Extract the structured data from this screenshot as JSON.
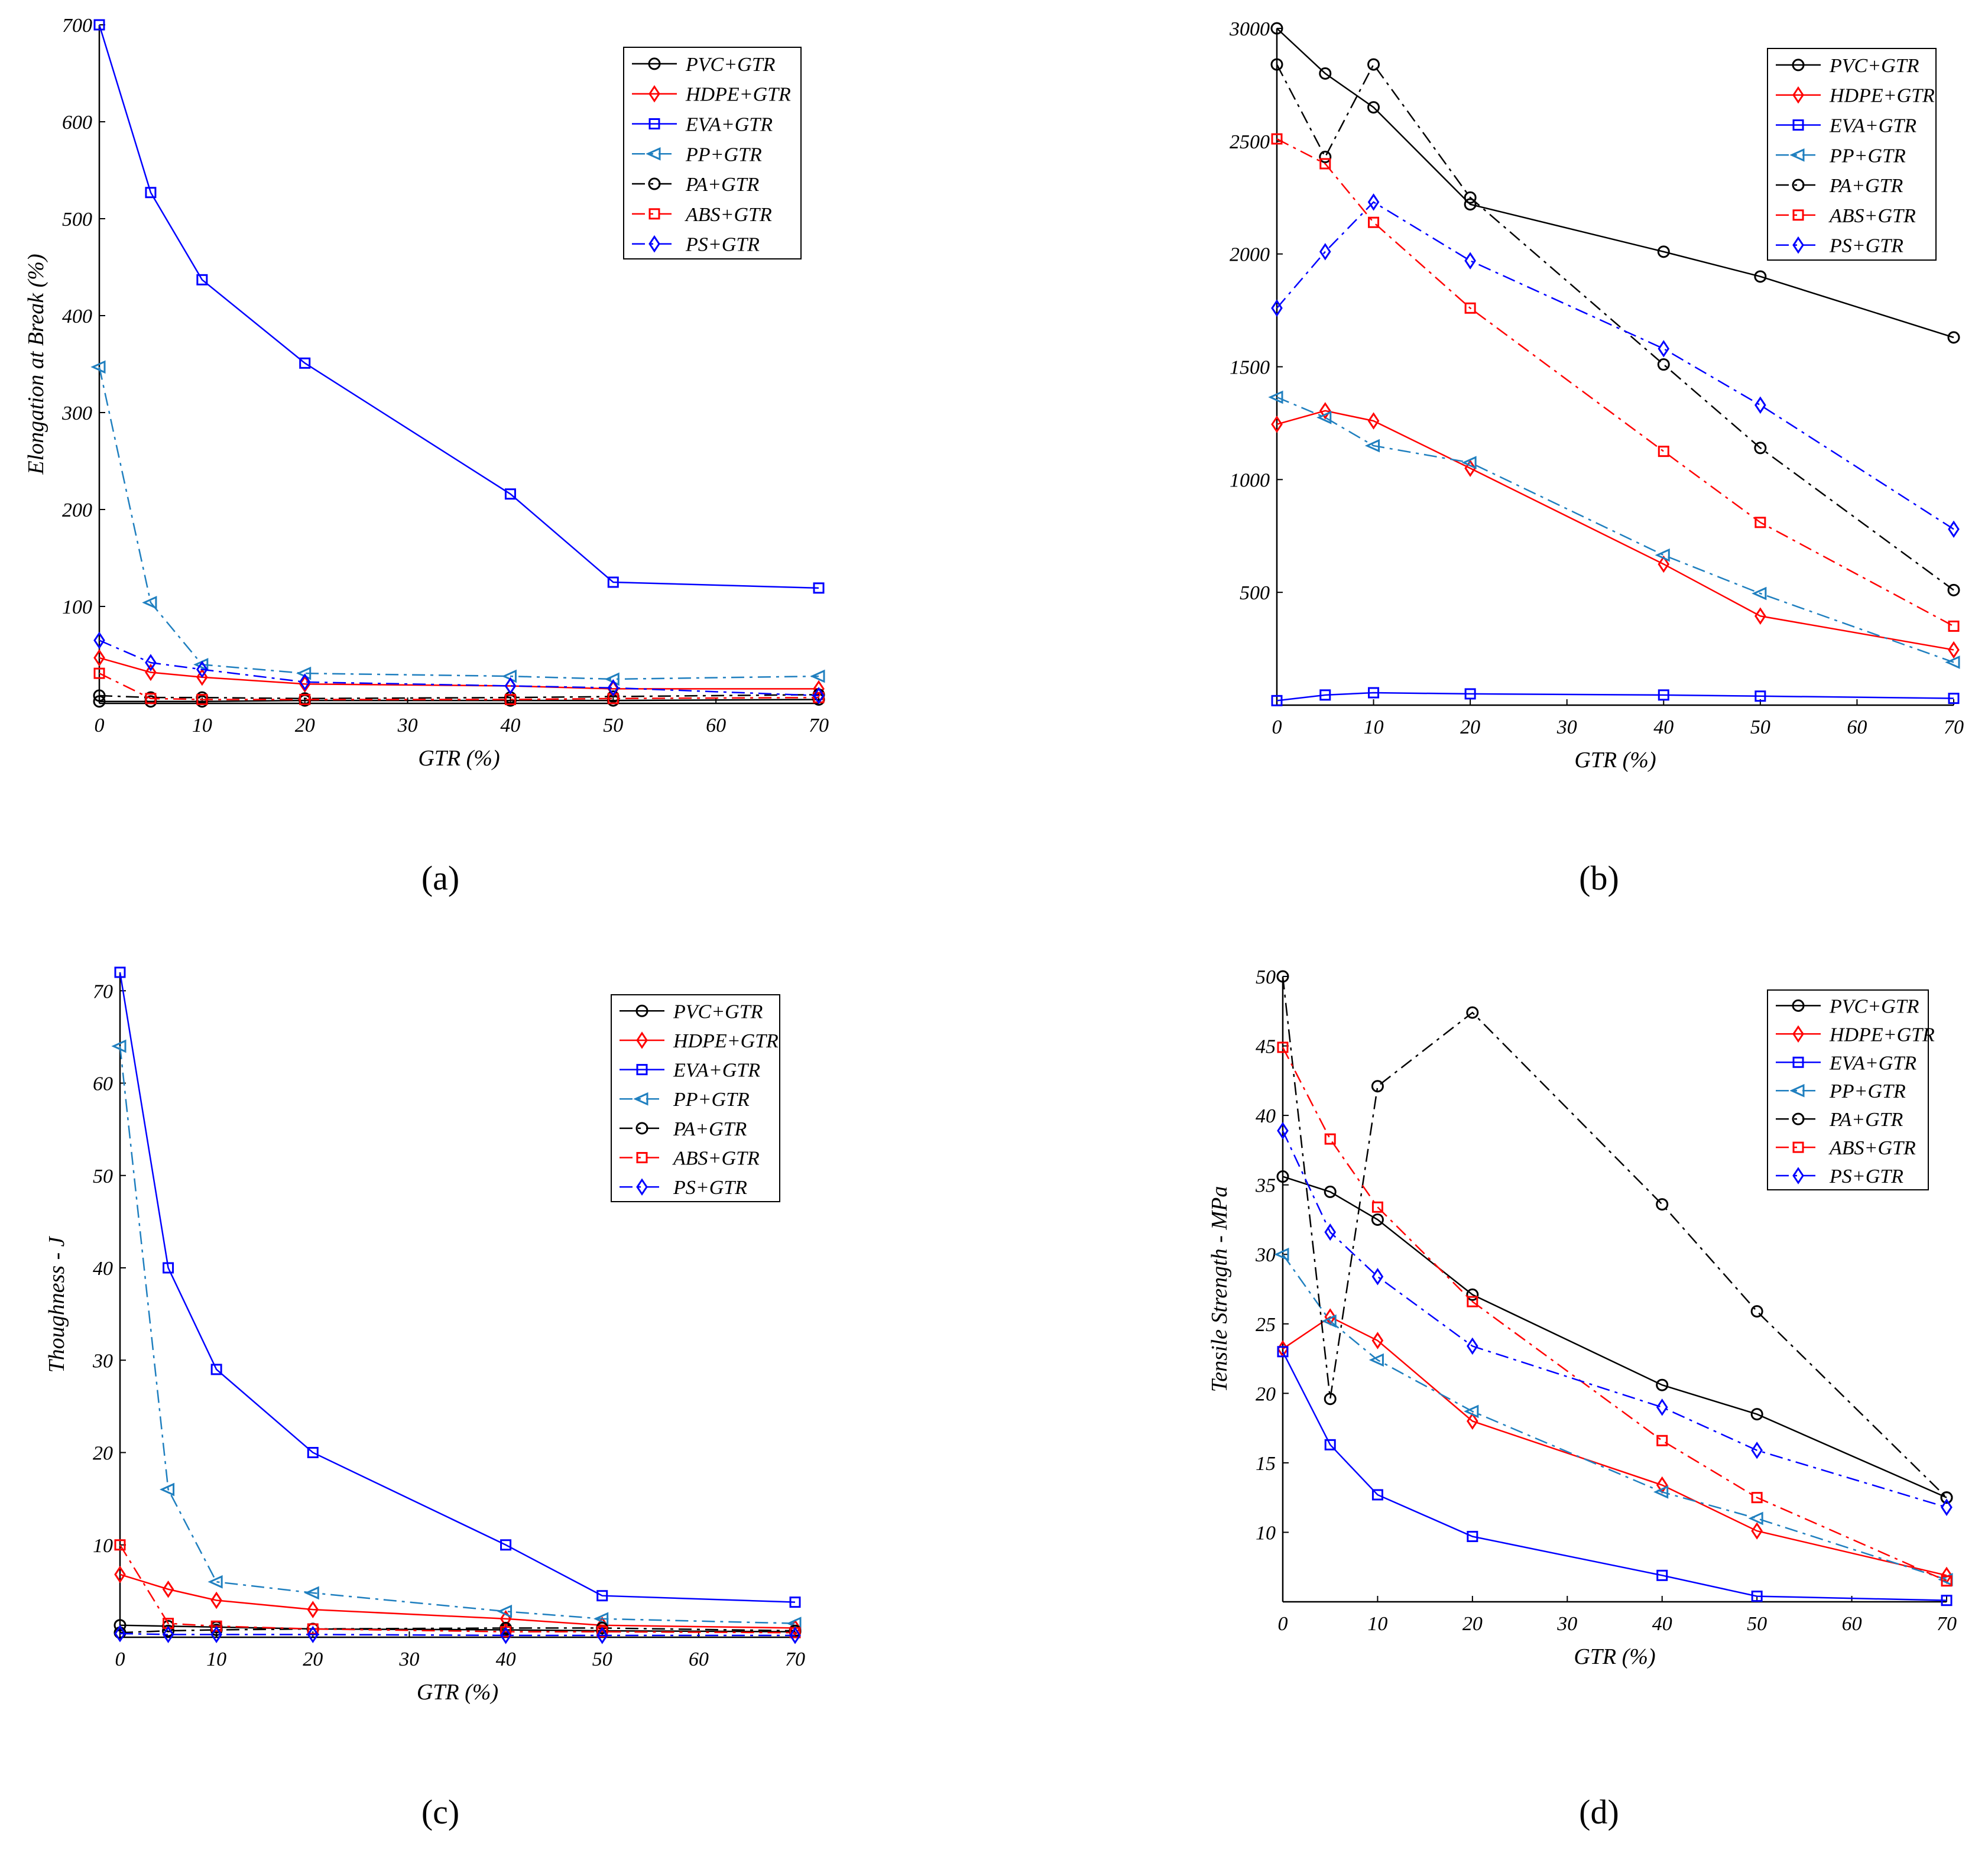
{
  "panels": [
    "(a)",
    "(b)",
    "(c)",
    "(d)"
  ],
  "series_names": [
    "PVC+GTR",
    "HDPE+GTR",
    "EVA+GTR",
    "PP+GTR",
    "PA+GTR",
    "ABS+GTR",
    "PS+GTR"
  ],
  "series_styles": [
    {
      "color": "#000000",
      "marker": "circle",
      "dash": "solid"
    },
    {
      "color": "#ff0000",
      "marker": "diamond",
      "dash": "solid"
    },
    {
      "color": "#0000ff",
      "marker": "square",
      "dash": "solid"
    },
    {
      "color": "#1f7fbf",
      "marker": "triangle-left",
      "dash": "dashdot"
    },
    {
      "color": "#000000",
      "marker": "circle",
      "dash": "dashdot"
    },
    {
      "color": "#ff0000",
      "marker": "square",
      "dash": "dashdot"
    },
    {
      "color": "#0000ff",
      "marker": "diamond",
      "dash": "dashdot"
    }
  ],
  "chart_data": [
    {
      "type": "line",
      "panel": "(a)",
      "xlabel": "GTR (%)",
      "ylabel": "Elongation at Break (%)",
      "x": [
        0,
        5,
        10,
        20,
        40,
        50,
        70
      ],
      "xlim": [
        0,
        70
      ],
      "ylim": [
        0,
        700
      ],
      "xticks": [
        0,
        10,
        20,
        30,
        40,
        50,
        60,
        70
      ],
      "yticks": [
        100,
        200,
        300,
        400,
        500,
        600,
        700
      ],
      "series": [
        {
          "name": "PVC+GTR",
          "values": [
            2,
            2,
            2,
            3,
            3,
            3,
            4
          ]
        },
        {
          "name": "HDPE+GTR",
          "values": [
            47,
            32,
            27,
            20,
            18,
            15,
            15
          ]
        },
        {
          "name": "EVA+GTR",
          "values": [
            703,
            527,
            437,
            351,
            216,
            125,
            119
          ]
        },
        {
          "name": "PP+GTR",
          "values": [
            347,
            104,
            40,
            31,
            28,
            25,
            28
          ]
        },
        {
          "name": "PA+GTR",
          "values": [
            8,
            6,
            6,
            5,
            6,
            7,
            9
          ]
        },
        {
          "name": "ABS+GTR",
          "values": [
            31,
            5,
            4,
            4,
            4,
            5,
            6
          ]
        },
        {
          "name": "PS+GTR",
          "values": [
            65,
            42,
            35,
            22,
            18,
            16,
            8
          ]
        }
      ]
    },
    {
      "type": "line",
      "panel": "(b)",
      "xlabel": "GTR (%)",
      "ylabel": "",
      "x": [
        0,
        5,
        10,
        20,
        40,
        50,
        70
      ],
      "xlim": [
        0,
        70
      ],
      "ylim": [
        0,
        3000
      ],
      "xticks": [
        0,
        10,
        20,
        30,
        40,
        50,
        60,
        70
      ],
      "yticks": [
        500,
        1000,
        1500,
        2000,
        2500,
        3000
      ],
      "series": [
        {
          "name": "PVC+GTR",
          "values": [
            3020,
            2800,
            2650,
            2220,
            2010,
            1900,
            1630
          ]
        },
        {
          "name": "HDPE+GTR",
          "values": [
            1245,
            1305,
            1260,
            1050,
            625,
            395,
            245
          ]
        },
        {
          "name": "EVA+GTR",
          "values": [
            20,
            45,
            55,
            50,
            45,
            40,
            30
          ]
        },
        {
          "name": "PP+GTR",
          "values": [
            1365,
            1275,
            1150,
            1075,
            665,
            495,
            190
          ]
        },
        {
          "name": "PA+GTR",
          "values": [
            2840,
            2430,
            2840,
            2250,
            1510,
            1140,
            510
          ]
        },
        {
          "name": "ABS+GTR",
          "values": [
            2510,
            2400,
            2140,
            1760,
            1125,
            810,
            350
          ]
        },
        {
          "name": "PS+GTR",
          "values": [
            1760,
            2010,
            2230,
            1970,
            1580,
            1330,
            780
          ]
        }
      ]
    },
    {
      "type": "line",
      "panel": "(c)",
      "xlabel": "GTR (%)",
      "ylabel": "Thoughness - J",
      "x": [
        0,
        5,
        10,
        20,
        40,
        50,
        70
      ],
      "xlim": [
        0,
        70
      ],
      "ylim": [
        0,
        72
      ],
      "xticks": [
        0,
        10,
        20,
        30,
        40,
        50,
        60,
        70
      ],
      "yticks": [
        10,
        20,
        30,
        40,
        50,
        60,
        70
      ],
      "series": [
        {
          "name": "PVC+GTR",
          "values": [
            1.3,
            1.2,
            1.1,
            0.9,
            0.8,
            0.7,
            0.6
          ]
        },
        {
          "name": "HDPE+GTR",
          "values": [
            6.8,
            5.2,
            4.0,
            3.0,
            2.0,
            1.3,
            1.0
          ]
        },
        {
          "name": "EVA+GTR",
          "values": [
            72,
            40,
            29,
            20,
            10,
            4.5,
            3.8
          ]
        },
        {
          "name": "PP+GTR",
          "values": [
            64,
            16,
            6,
            4.8,
            2.8,
            2,
            1.5
          ]
        },
        {
          "name": "PA+GTR",
          "values": [
            0.5,
            0.7,
            0.8,
            0.9,
            1.0,
            1.0,
            0.7
          ]
        },
        {
          "name": "ABS+GTR",
          "values": [
            10,
            1.5,
            1.2,
            0.9,
            0.6,
            0.6,
            0.5
          ]
        },
        {
          "name": "PS+GTR",
          "values": [
            0.4,
            0.3,
            0.3,
            0.3,
            0.2,
            0.2,
            0.2
          ]
        }
      ]
    },
    {
      "type": "line",
      "panel": "(d)",
      "xlabel": "GTR (%)",
      "ylabel": "Tensile Strength - MPa",
      "x": [
        0,
        5,
        10,
        20,
        40,
        50,
        70
      ],
      "xlim": [
        0,
        70
      ],
      "ylim": [
        5,
        50
      ],
      "xticks": [
        0,
        10,
        20,
        30,
        40,
        50,
        60,
        70
      ],
      "yticks": [
        10,
        15,
        20,
        25,
        30,
        35,
        40,
        45,
        50
      ],
      "series": [
        {
          "name": "PVC+GTR",
          "values": [
            35.6,
            34.5,
            32.5,
            27.1,
            20.6,
            18.5,
            12.5
          ]
        },
        {
          "name": "HDPE+GTR",
          "values": [
            23.2,
            25.5,
            23.8,
            18.0,
            13.4,
            10.1,
            6.9
          ]
        },
        {
          "name": "EVA+GTR",
          "values": [
            23.0,
            16.3,
            12.7,
            9.7,
            6.9,
            5.4,
            5.1
          ]
        },
        {
          "name": "PP+GTR",
          "values": [
            30.0,
            25.2,
            22.4,
            18.7,
            12.9,
            11.0,
            6.6
          ]
        },
        {
          "name": "PA+GTR",
          "values": [
            50.3,
            19.6,
            42.1,
            47.4,
            33.6,
            25.9,
            12.5
          ]
        },
        {
          "name": "ABS+GTR",
          "values": [
            44.9,
            38.3,
            33.4,
            26.6,
            16.6,
            12.5,
            6.5
          ]
        },
        {
          "name": "PS+GTR",
          "values": [
            38.9,
            31.6,
            28.4,
            23.4,
            19.0,
            15.9,
            11.8
          ]
        }
      ]
    }
  ]
}
